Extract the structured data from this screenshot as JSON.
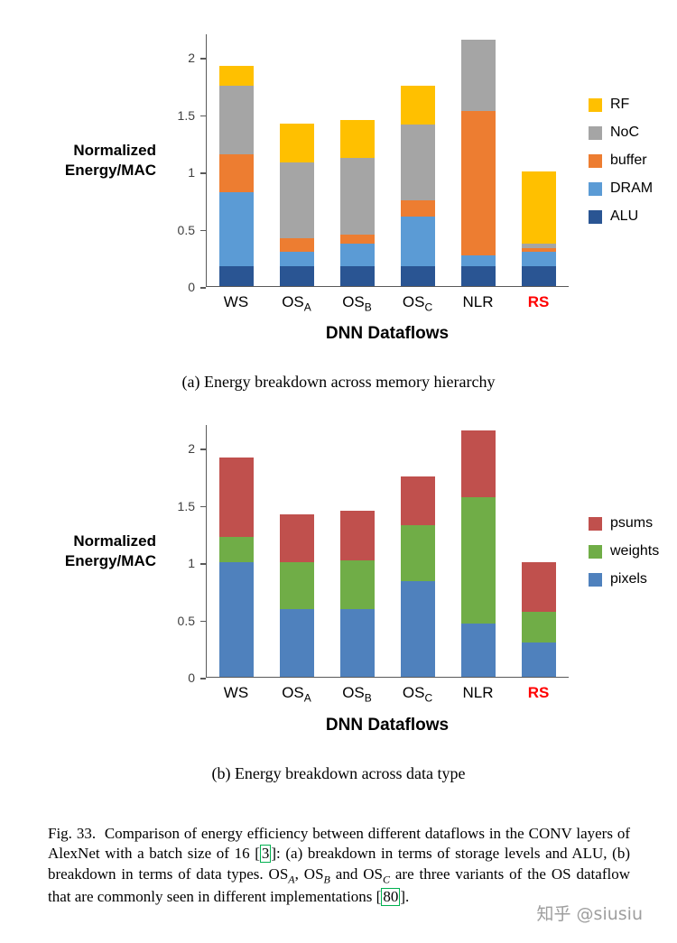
{
  "chart_data": [
    {
      "id": "a",
      "type": "bar",
      "stacked": true,
      "ylabel_line1": "Normalized",
      "ylabel_line2": "Energy/MAC",
      "xlabel": "DNN Dataflows",
      "caption": "(a) Energy breakdown across memory hierarchy",
      "ylim": [
        0,
        2.2
      ],
      "yticks": [
        "0",
        "0.5",
        "1",
        "1.5",
        "2"
      ],
      "ytick_values": [
        0,
        0.5,
        1,
        1.5,
        2
      ],
      "grid": false,
      "legend_position": "right",
      "categories": [
        {
          "label": "WS",
          "sub": ""
        },
        {
          "label": "OS",
          "sub": "A"
        },
        {
          "label": "OS",
          "sub": "B"
        },
        {
          "label": "OS",
          "sub": "C"
        },
        {
          "label": "NLR",
          "sub": ""
        },
        {
          "label": "RS",
          "sub": "",
          "highlight_color": "#ff0000"
        }
      ],
      "series": [
        {
          "name": "ALU",
          "color": "#2a5593",
          "values": [
            0.17,
            0.17,
            0.17,
            0.17,
            0.17,
            0.17
          ]
        },
        {
          "name": "DRAM",
          "color": "#5b9bd5",
          "values": [
            0.65,
            0.13,
            0.2,
            0.44,
            0.1,
            0.13
          ]
        },
        {
          "name": "buffer",
          "color": "#ed7d31",
          "values": [
            0.33,
            0.12,
            0.08,
            0.14,
            1.26,
            0.03
          ]
        },
        {
          "name": "NoC",
          "color": "#a5a5a5",
          "values": [
            0.6,
            0.66,
            0.67,
            0.66,
            0.62,
            0.04
          ]
        },
        {
          "name": "RF",
          "color": "#ffc000",
          "values": [
            0.17,
            0.34,
            0.33,
            0.34,
            0.0,
            0.63
          ]
        }
      ],
      "totals": [
        1.92,
        1.42,
        1.45,
        1.75,
        2.15,
        1.0
      ]
    },
    {
      "id": "b",
      "type": "bar",
      "stacked": true,
      "ylabel_line1": "Normalized",
      "ylabel_line2": "Energy/MAC",
      "xlabel": "DNN Dataflows",
      "caption": "(b) Energy breakdown across data type",
      "ylim": [
        0,
        2.2
      ],
      "yticks": [
        "0",
        "0.5",
        "1",
        "1.5",
        "2"
      ],
      "ytick_values": [
        0,
        0.5,
        1,
        1.5,
        2
      ],
      "grid": false,
      "legend_position": "right",
      "categories": [
        {
          "label": "WS",
          "sub": ""
        },
        {
          "label": "OS",
          "sub": "A"
        },
        {
          "label": "OS",
          "sub": "B"
        },
        {
          "label": "OS",
          "sub": "C"
        },
        {
          "label": "NLR",
          "sub": ""
        },
        {
          "label": "RS",
          "sub": "",
          "highlight_color": "#ff0000"
        }
      ],
      "series": [
        {
          "name": "pixels",
          "color": "#4f81bd",
          "values": [
            1.0,
            0.59,
            0.59,
            0.84,
            0.47,
            0.3
          ]
        },
        {
          "name": "weights",
          "color": "#70ad47",
          "values": [
            0.22,
            0.41,
            0.43,
            0.49,
            1.1,
            0.27
          ]
        },
        {
          "name": "psums",
          "color": "#c0504d",
          "values": [
            0.7,
            0.42,
            0.43,
            0.42,
            0.58,
            0.43
          ]
        }
      ],
      "totals": [
        1.92,
        1.42,
        1.45,
        1.75,
        2.15,
        1.0
      ]
    }
  ],
  "figure_caption": {
    "runs": [
      {
        "text": "Fig. 33.  Comparison of energy efficiency between different dataflows in the CONV layers of AlexNet with a batch size of 16 ["
      },
      {
        "text": "3",
        "kind": "cite"
      },
      {
        "text": "]: (a) breakdown in terms of storage levels and ALU, (b) breakdown in terms of data types. OS"
      },
      {
        "text": "A",
        "kind": "sub"
      },
      {
        "text": ", OS",
        "kind": "plain"
      },
      {
        "text": "B",
        "kind": "sub"
      },
      {
        "text": " and OS",
        "kind": "plain"
      },
      {
        "text": "C",
        "kind": "sub"
      },
      {
        "text": " are three variants of the OS dataflow that are commonly seen in different implementations [",
        "kind": "plain"
      },
      {
        "text": "80",
        "kind": "cite"
      },
      {
        "text": ".",
        "kind": "plain_after_bracket"
      },
      {
        "text": "]",
        "kind": "bracket"
      }
    ],
    "order_note": "runs rendered in listed order except bracket handling below"
  },
  "watermark": "知乎 @siusiu",
  "colors": {
    "axis": "#595959",
    "category_highlight": "#ff0000",
    "citation_box": "#00b050",
    "watermark_text": "#9e9e9e"
  }
}
